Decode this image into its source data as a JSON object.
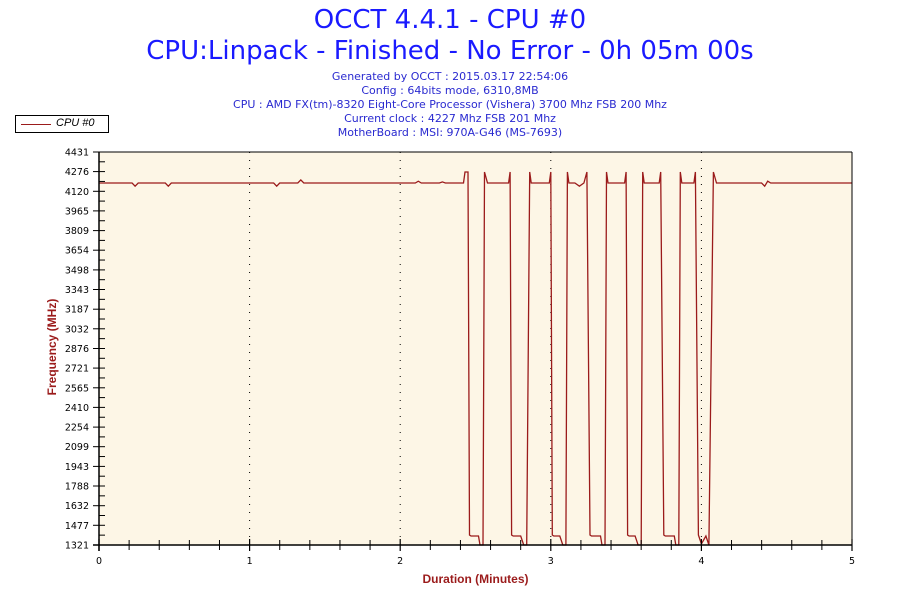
{
  "header": {
    "title": "OCCT 4.4.1 - CPU #0",
    "subtitle": "CPU:Linpack - Finished - No Error - 0h 05m 00s",
    "info": [
      "Generated by OCCT : 2015.03.17 22:54:06",
      "Config : 64bits mode, 6310,8MB",
      "CPU : AMD FX(tm)-8320 Eight-Core Processor (Vishera) 3700 Mhz FSB 200 Mhz",
      "Current clock : 4227 Mhz FSB 201 Mhz",
      "MotherBoard : MSI: 970A-G46 (MS-7693)"
    ]
  },
  "legend": {
    "label": "CPU #0",
    "color": "#9b1b1b"
  },
  "colors": {
    "plot_bg": "#fdf6e6",
    "line": "#9b1b1b",
    "title": "#1a1aff",
    "axis_title": "#9b1b1b"
  },
  "chart_data": {
    "type": "line",
    "title": "OCCT 4.4.1 - CPU #0",
    "subtitle": "CPU:Linpack - Finished - No Error - 0h 05m 00s",
    "xlabel": "Duration (Minutes)",
    "ylabel": "Frequency (MHz)",
    "xlim": [
      0,
      5
    ],
    "ylim": [
      1321,
      4431
    ],
    "x_ticks": [
      "0",
      "1",
      "2",
      "3",
      "4",
      "5"
    ],
    "y_ticks": [
      "1321",
      "1477",
      "1632",
      "1788",
      "1943",
      "2099",
      "2254",
      "2410",
      "2565",
      "2721",
      "2876",
      "3032",
      "3187",
      "3343",
      "3498",
      "3654",
      "3809",
      "3965",
      "4120",
      "4276",
      "4431"
    ],
    "grid": "vertical dotted at each minute",
    "legend_position": "top-left",
    "series": [
      {
        "name": "CPU #0",
        "points": [
          [
            0.0,
            4186
          ],
          [
            0.22,
            4186
          ],
          [
            0.24,
            4160
          ],
          [
            0.26,
            4186
          ],
          [
            0.44,
            4186
          ],
          [
            0.46,
            4160
          ],
          [
            0.48,
            4186
          ],
          [
            1.16,
            4186
          ],
          [
            1.18,
            4160
          ],
          [
            1.2,
            4186
          ],
          [
            1.32,
            4186
          ],
          [
            1.34,
            4210
          ],
          [
            1.36,
            4186
          ],
          [
            2.1,
            4186
          ],
          [
            2.12,
            4200
          ],
          [
            2.14,
            4186
          ],
          [
            2.26,
            4186
          ],
          [
            2.28,
            4194
          ],
          [
            2.3,
            4186
          ],
          [
            2.42,
            4186
          ],
          [
            2.43,
            4273
          ],
          [
            2.45,
            4273
          ],
          [
            2.46,
            1400
          ],
          [
            2.47,
            1392
          ],
          [
            2.52,
            1392
          ],
          [
            2.53,
            1321
          ],
          [
            2.55,
            1321
          ],
          [
            2.56,
            4273
          ],
          [
            2.58,
            4186
          ],
          [
            2.72,
            4186
          ],
          [
            2.73,
            4273
          ],
          [
            2.74,
            1400
          ],
          [
            2.75,
            1392
          ],
          [
            2.8,
            1392
          ],
          [
            2.82,
            1321
          ],
          [
            2.84,
            1321
          ],
          [
            2.86,
            4273
          ],
          [
            2.87,
            4186
          ],
          [
            2.99,
            4186
          ],
          [
            3.0,
            4273
          ],
          [
            3.01,
            1400
          ],
          [
            3.02,
            1392
          ],
          [
            3.06,
            1392
          ],
          [
            3.08,
            1321
          ],
          [
            3.1,
            1321
          ],
          [
            3.11,
            4273
          ],
          [
            3.12,
            4186
          ],
          [
            3.16,
            4186
          ],
          [
            3.19,
            4160
          ],
          [
            3.22,
            4186
          ],
          [
            3.24,
            4273
          ],
          [
            3.26,
            1400
          ],
          [
            3.27,
            1392
          ],
          [
            3.33,
            1392
          ],
          [
            3.34,
            1321
          ],
          [
            3.36,
            1321
          ],
          [
            3.37,
            4273
          ],
          [
            3.38,
            4186
          ],
          [
            3.49,
            4186
          ],
          [
            3.5,
            4273
          ],
          [
            3.51,
            1400
          ],
          [
            3.52,
            1392
          ],
          [
            3.56,
            1392
          ],
          [
            3.58,
            1321
          ],
          [
            3.6,
            1321
          ],
          [
            3.61,
            4273
          ],
          [
            3.62,
            4186
          ],
          [
            3.72,
            4186
          ],
          [
            3.73,
            4273
          ],
          [
            3.75,
            1400
          ],
          [
            3.76,
            1392
          ],
          [
            3.82,
            1392
          ],
          [
            3.83,
            1321
          ],
          [
            3.85,
            1321
          ],
          [
            3.86,
            4273
          ],
          [
            3.87,
            4186
          ],
          [
            3.95,
            4186
          ],
          [
            3.96,
            4273
          ],
          [
            3.98,
            1400
          ],
          [
            4.0,
            1330
          ],
          [
            4.03,
            1392
          ],
          [
            4.05,
            1321
          ],
          [
            4.08,
            4273
          ],
          [
            4.1,
            4186
          ],
          [
            4.4,
            4186
          ],
          [
            4.42,
            4160
          ],
          [
            4.44,
            4200
          ],
          [
            4.46,
            4186
          ],
          [
            5.0,
            4186
          ]
        ]
      }
    ]
  }
}
